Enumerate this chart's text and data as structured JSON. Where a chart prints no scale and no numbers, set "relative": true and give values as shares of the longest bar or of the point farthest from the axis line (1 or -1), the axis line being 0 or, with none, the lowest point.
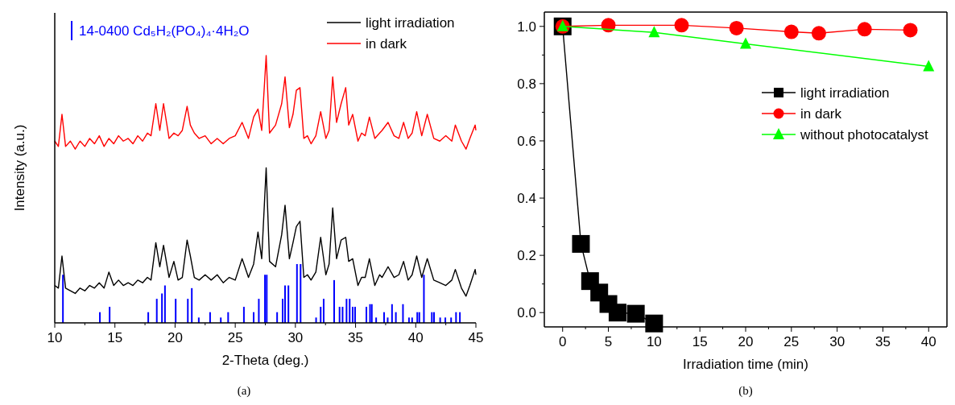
{
  "chart_data": [
    {
      "type": "line",
      "relative": true,
      "xlabel": "2-Theta (deg.)",
      "ylabel": "Intensity (a.u.)",
      "xlim": [
        10,
        45
      ],
      "xticks": [
        10,
        15,
        20,
        25,
        30,
        35,
        40,
        45
      ],
      "legend": "top",
      "line_style": "solid",
      "marker": "none",
      "annotations": [
        "(a)"
      ],
      "x": [
        10,
        10.3,
        10.6,
        10.9,
        11.3,
        11.7,
        12.1,
        12.5,
        12.9,
        13.3,
        13.7,
        14.1,
        14.5,
        14.9,
        15.3,
        15.7,
        16.1,
        16.5,
        16.9,
        17.3,
        17.7,
        18.0,
        18.4,
        18.73,
        19.04,
        19.5,
        19.9,
        20.25,
        20.6,
        21.0,
        21.27,
        21.6,
        22.0,
        22.5,
        23.0,
        23.5,
        24.0,
        24.5,
        25.0,
        25.57,
        26.1,
        26.53,
        26.89,
        27.2,
        27.57,
        27.85,
        28.35,
        28.86,
        29.14,
        29.5,
        29.8,
        30.08,
        30.38,
        30.7,
        31.0,
        31.3,
        31.7,
        32.1,
        32.53,
        32.8,
        33.1,
        33.42,
        33.8,
        34.18,
        34.43,
        34.76,
        35.2,
        35.5,
        35.8,
        36.15,
        36.6,
        37.0,
        37.2,
        37.7,
        38.2,
        38.6,
        38.99,
        39.37,
        39.7,
        40.08,
        40.5,
        40.96,
        41.5,
        42.0,
        42.5,
        43.0,
        43.29,
        43.8,
        44.18,
        44.5,
        44.94,
        45
      ],
      "series": [
        {
          "name": "light irradiation",
          "color": "#000000",
          "values": [
            0.14,
            0.13,
            0.25,
            0.13,
            0.12,
            0.11,
            0.13,
            0.12,
            0.14,
            0.13,
            0.15,
            0.13,
            0.19,
            0.14,
            0.16,
            0.14,
            0.15,
            0.14,
            0.16,
            0.15,
            0.17,
            0.16,
            0.3,
            0.21,
            0.29,
            0.17,
            0.23,
            0.16,
            0.17,
            0.31,
            0.25,
            0.17,
            0.16,
            0.18,
            0.16,
            0.18,
            0.15,
            0.17,
            0.16,
            0.24,
            0.17,
            0.22,
            0.34,
            0.24,
            0.58,
            0.23,
            0.21,
            0.33,
            0.44,
            0.24,
            0.3,
            0.36,
            0.38,
            0.17,
            0.18,
            0.16,
            0.19,
            0.32,
            0.18,
            0.22,
            0.43,
            0.24,
            0.31,
            0.32,
            0.23,
            0.24,
            0.14,
            0.17,
            0.17,
            0.24,
            0.14,
            0.18,
            0.17,
            0.21,
            0.17,
            0.18,
            0.23,
            0.16,
            0.18,
            0.25,
            0.17,
            0.24,
            0.16,
            0.15,
            0.14,
            0.16,
            0.2,
            0.13,
            0.1,
            0.14,
            0.2,
            0.18
          ]
        },
        {
          "name": "in dark",
          "color": "#ff0000",
          "values": [
            0.68,
            0.66,
            0.78,
            0.66,
            0.68,
            0.65,
            0.68,
            0.66,
            0.69,
            0.67,
            0.7,
            0.66,
            0.69,
            0.67,
            0.7,
            0.68,
            0.69,
            0.67,
            0.7,
            0.68,
            0.71,
            0.7,
            0.82,
            0.72,
            0.82,
            0.69,
            0.71,
            0.7,
            0.72,
            0.81,
            0.74,
            0.71,
            0.69,
            0.7,
            0.67,
            0.69,
            0.67,
            0.69,
            0.7,
            0.75,
            0.69,
            0.77,
            0.8,
            0.72,
            1.0,
            0.71,
            0.74,
            0.82,
            0.92,
            0.73,
            0.78,
            0.87,
            0.88,
            0.69,
            0.7,
            0.67,
            0.7,
            0.79,
            0.69,
            0.72,
            0.92,
            0.75,
            0.82,
            0.88,
            0.74,
            0.78,
            0.68,
            0.71,
            0.7,
            0.77,
            0.69,
            0.71,
            0.72,
            0.75,
            0.7,
            0.69,
            0.75,
            0.69,
            0.71,
            0.79,
            0.7,
            0.78,
            0.69,
            0.68,
            0.7,
            0.68,
            0.74,
            0.68,
            0.65,
            0.69,
            0.74,
            0.72
          ]
        },
        {
          "name": "14-0400 Cd₅H₂(PO₄)₄·4H₂O",
          "color": "#0000ff",
          "type": "bar",
          "x": [
            10.68,
            13.75,
            14.56,
            17.77,
            18.48,
            18.91,
            19.16,
            20.05,
            21.06,
            21.39,
            21.97,
            22.91,
            23.8,
            24.41,
            25.72,
            26.53,
            26.96,
            27.47,
            27.62,
            28.48,
            28.94,
            29.14,
            29.42,
            30.13,
            30.43,
            31.72,
            32.1,
            32.35,
            33.22,
            33.67,
            33.92,
            34.25,
            34.51,
            34.76,
            34.96,
            35.9,
            36.2,
            36.35,
            36.71,
            37.37,
            37.67,
            38.03,
            38.35,
            38.94,
            39.44,
            39.7,
            40.13,
            40.3,
            40.68,
            41.34,
            41.52,
            42.03,
            42.46,
            42.94,
            43.35,
            43.67
          ],
          "values": [
            0.18,
            0.04,
            0.06,
            0.04,
            0.09,
            0.11,
            0.14,
            0.09,
            0.09,
            0.13,
            0.02,
            0.04,
            0.02,
            0.04,
            0.06,
            0.04,
            0.09,
            0.18,
            0.18,
            0.04,
            0.09,
            0.14,
            0.14,
            0.22,
            0.22,
            0.02,
            0.06,
            0.09,
            0.16,
            0.06,
            0.06,
            0.09,
            0.09,
            0.06,
            0.06,
            0.06,
            0.07,
            0.07,
            0.02,
            0.04,
            0.02,
            0.07,
            0.04,
            0.07,
            0.02,
            0.02,
            0.04,
            0.04,
            0.18,
            0.04,
            0.04,
            0.02,
            0.02,
            0.02,
            0.04,
            0.04
          ]
        }
      ]
    },
    {
      "type": "line",
      "xlabel": "Irradiation time (min)",
      "xlim": [
        -2,
        42
      ],
      "xticks": [
        0,
        5,
        10,
        15,
        20,
        25,
        30,
        35,
        40
      ],
      "ylim": [
        -0.05,
        1.05
      ],
      "yticks": [
        {
          "value": 0,
          "label": "0.0"
        },
        0.2,
        0.4,
        0.6,
        0.8,
        {
          "value": 1,
          "label": "1.0"
        }
      ],
      "legend": "right",
      "line_style": "solid",
      "annotations": [
        "(b)"
      ],
      "series": [
        {
          "name": "light irradiation",
          "color": "#000000",
          "marker": "square",
          "x": [
            0,
            2,
            3,
            4,
            5,
            6,
            8,
            10
          ],
          "values": [
            1.0,
            0.24,
            0.11,
            0.07,
            0.03,
            0.0,
            -0.004,
            -0.038
          ]
        },
        {
          "name": "in dark",
          "color": "#ff0000",
          "marker": "circle",
          "x": [
            0,
            5,
            13,
            19,
            25,
            28,
            33,
            38
          ],
          "values": [
            1.0,
            1.004,
            1.004,
            0.994,
            0.981,
            0.976,
            0.99,
            0.987
          ]
        },
        {
          "name": "without photocatalyst",
          "color": "#00ff00",
          "marker": "triangle",
          "x": [
            0,
            10,
            20,
            40
          ],
          "values": [
            1.0,
            0.979,
            0.939,
            0.86
          ]
        }
      ]
    }
  ]
}
